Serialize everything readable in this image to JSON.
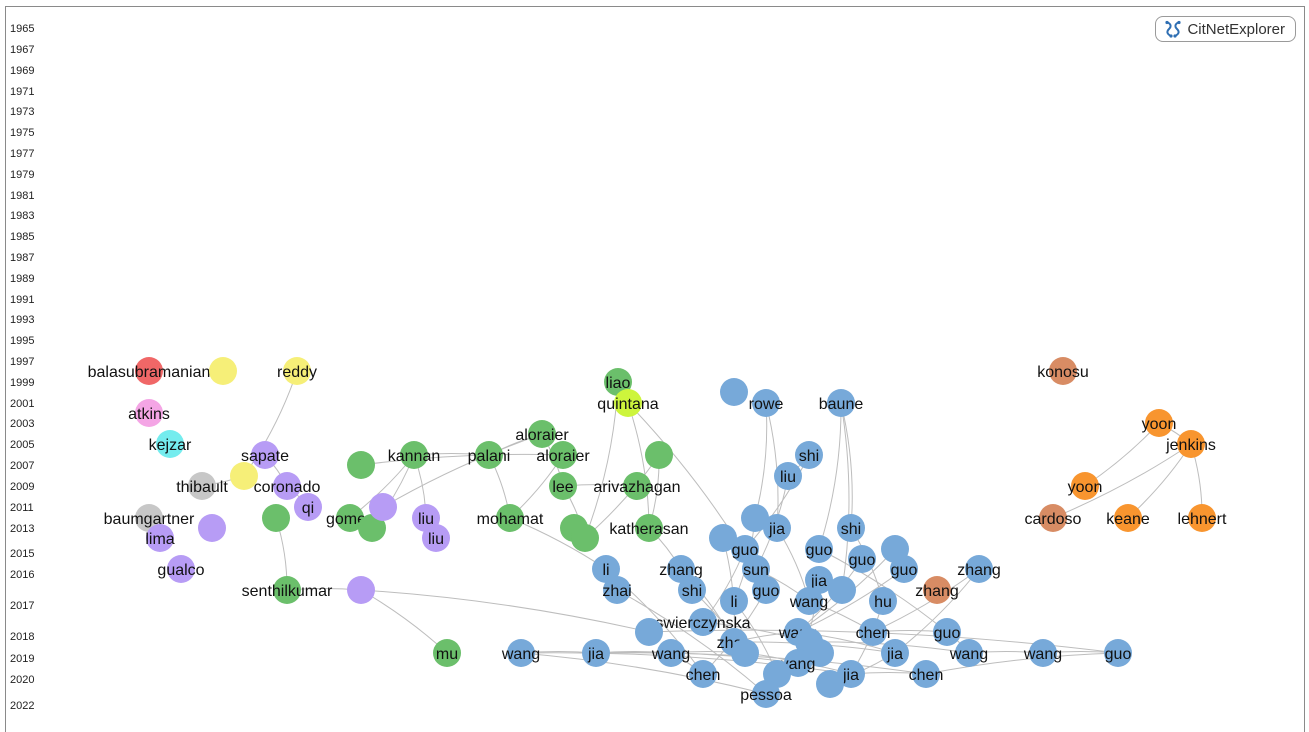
{
  "app": {
    "name": "CitNetExplorer",
    "logo_icon": "citnetexplorer-logo-icon"
  },
  "colors": {
    "green": "#6bbf6b",
    "blue": "#77a9d9",
    "purple": "#b79cf5",
    "yellow": "#f6ef78",
    "red": "#f06767",
    "pink": "#f4a5e5",
    "cyan": "#74ecee",
    "gray": "#c7c7c7",
    "lime": "#cdf53c",
    "brown": "#d88c64",
    "orange": "#f8952f",
    "edge": "#bdbdbd"
  },
  "year_axis": [
    "1965",
    "1967",
    "1969",
    "1971",
    "1973",
    "1975",
    "1977",
    "1979",
    "1981",
    "1983",
    "1985",
    "1987",
    "1989",
    "1991",
    "1993",
    "1995",
    "1997",
    "1999",
    "2001",
    "2003",
    "2005",
    "2007",
    "2009",
    "2011",
    "2013",
    "2015",
    "2016",
    "2017",
    "2018",
    "2019",
    "2020",
    "2022"
  ],
  "nodes": [
    {
      "id": "balasubramanian",
      "label": "balasubramanian",
      "year": "1998",
      "color": "red"
    },
    {
      "id": "balasubramanian-y",
      "label": "",
      "year": "1998",
      "color": "yellow"
    },
    {
      "id": "reddy",
      "label": "reddy",
      "year": "1998",
      "color": "yellow"
    },
    {
      "id": "atkins",
      "label": "atkins",
      "year": "2002",
      "color": "pink"
    },
    {
      "id": "kejzar",
      "label": "kejzar",
      "year": "2005",
      "color": "cyan"
    },
    {
      "id": "sapate",
      "label": "sapate",
      "year": "2006",
      "color": "purple"
    },
    {
      "id": "coronado-y",
      "label": "",
      "year": "2008",
      "color": "yellow"
    },
    {
      "id": "thibault",
      "label": "thibault",
      "year": "2009",
      "color": "gray"
    },
    {
      "id": "coronado",
      "label": "coronado",
      "year": "2009",
      "color": "purple"
    },
    {
      "id": "qi",
      "label": "qi",
      "year": "2010",
      "color": "purple"
    },
    {
      "id": "baumgartner",
      "label": "baumgartner",
      "year": "2012",
      "color": "gray"
    },
    {
      "id": "purple-2012",
      "label": "",
      "year": "2012",
      "color": "purple"
    },
    {
      "id": "lima",
      "label": "lima",
      "year": "2014",
      "color": "purple"
    },
    {
      "id": "gualco",
      "label": "gualco",
      "year": "2016",
      "color": "purple"
    },
    {
      "id": "green-2012a",
      "label": "",
      "year": "2012",
      "color": "green"
    },
    {
      "id": "gomes",
      "label": "gomes",
      "year": "2012",
      "color": "green"
    },
    {
      "id": "green-2013",
      "label": "",
      "year": "2013",
      "color": "green"
    },
    {
      "id": "green-2007",
      "label": "",
      "year": "2007",
      "color": "green"
    },
    {
      "id": "purple-2010",
      "label": "",
      "year": "2010",
      "color": "purple"
    },
    {
      "id": "liu-a",
      "label": "liu",
      "year": "2012",
      "color": "purple"
    },
    {
      "id": "liu-b",
      "label": "liu",
      "year": "2014",
      "color": "purple"
    },
    {
      "id": "kannan",
      "label": "kannan",
      "year": "2006",
      "color": "green"
    },
    {
      "id": "palani",
      "label": "palani",
      "year": "2006",
      "color": "green"
    },
    {
      "id": "aloraier-a",
      "label": "aloraier",
      "year": "2005",
      "color": "green"
    },
    {
      "id": "aloraier-b",
      "label": "aloraier",
      "year": "2006",
      "color": "green"
    },
    {
      "id": "mohamat",
      "label": "mohamat",
      "year": "2012",
      "color": "green"
    },
    {
      "id": "lee",
      "label": "lee",
      "year": "2009",
      "color": "green"
    },
    {
      "id": "arivazhagan",
      "label": "arivazhagan",
      "year": "2009",
      "color": "green"
    },
    {
      "id": "green-2006",
      "label": "",
      "year": "2006",
      "color": "green"
    },
    {
      "id": "katherasan",
      "label": "katherasan",
      "year": "2013",
      "color": "green"
    },
    {
      "id": "green-2013b",
      "label": "",
      "year": "2013",
      "color": "green"
    },
    {
      "id": "green-2014",
      "label": "",
      "year": "2014",
      "color": "green"
    },
    {
      "id": "liao",
      "label": "liao",
      "year": "1999",
      "color": "green"
    },
    {
      "id": "quintana",
      "label": "quintana",
      "year": "2001",
      "color": "lime"
    },
    {
      "id": "senthilkumar",
      "label": "senthilkumar",
      "year": "2016",
      "color": "green"
    },
    {
      "id": "purple-2016",
      "label": "",
      "year": "2016",
      "color": "purple"
    },
    {
      "id": "mu",
      "label": "mu",
      "year": "2019",
      "color": "green"
    },
    {
      "id": "blue-2000",
      "label": "",
      "year": "2000",
      "color": "blue"
    },
    {
      "id": "rowe",
      "label": "rowe",
      "year": "2001",
      "color": "blue"
    },
    {
      "id": "baune",
      "label": "baune",
      "year": "2001",
      "color": "blue"
    },
    {
      "id": "shi-a",
      "label": "shi",
      "year": "2006",
      "color": "blue"
    },
    {
      "id": "liu-c",
      "label": "liu",
      "year": "2008",
      "color": "blue"
    },
    {
      "id": "blue-2012",
      "label": "",
      "year": "2012",
      "color": "blue"
    },
    {
      "id": "jia-a",
      "label": "jia",
      "year": "2013",
      "color": "blue"
    },
    {
      "id": "shi-b",
      "label": "shi",
      "year": "2013",
      "color": "blue"
    },
    {
      "id": "blue-2014",
      "label": "",
      "year": "2014",
      "color": "blue"
    },
    {
      "id": "guo-a",
      "label": "guo",
      "year": "2015",
      "color": "blue"
    },
    {
      "id": "guo-b",
      "label": "guo",
      "year": "2015",
      "color": "blue"
    },
    {
      "id": "guo-c",
      "label": "guo",
      "year": "2015",
      "color": "blue"
    },
    {
      "id": "blue-2015",
      "label": "",
      "year": "2015",
      "color": "blue"
    },
    {
      "id": "li-a",
      "label": "li",
      "year": "2016",
      "color": "blue"
    },
    {
      "id": "zhang-a",
      "label": "zhang",
      "year": "2016",
      "color": "blue"
    },
    {
      "id": "sun",
      "label": "sun",
      "year": "2016",
      "color": "blue"
    },
    {
      "id": "guo-d",
      "label": "guo",
      "year": "2016",
      "color": "blue"
    },
    {
      "id": "zhang-b",
      "label": "zhang",
      "year": "2016",
      "color": "blue"
    },
    {
      "id": "jia-b",
      "label": "jia",
      "year": "2016",
      "color": "blue"
    },
    {
      "id": "zhai",
      "label": "zhai",
      "year": "2016",
      "color": "blue"
    },
    {
      "id": "shi-c",
      "label": "shi",
      "year": "2016",
      "color": "blue"
    },
    {
      "id": "guo-e",
      "label": "guo",
      "year": "2016",
      "color": "blue"
    },
    {
      "id": "li-b",
      "label": "li",
      "year": "2017",
      "color": "blue"
    },
    {
      "id": "wang-a",
      "label": "wang",
      "year": "2017",
      "color": "blue"
    },
    {
      "id": "hu",
      "label": "hu",
      "year": "2017",
      "color": "blue"
    },
    {
      "id": "zhang-c",
      "label": "zhang",
      "year": "2016",
      "color": "brown"
    },
    {
      "id": "swierczynska",
      "label": "swierczynska",
      "year": "2017",
      "color": "blue"
    },
    {
      "id": "blue-2017",
      "label": "",
      "year": "2017",
      "color": "blue"
    },
    {
      "id": "blue-2018",
      "label": "",
      "year": "2018",
      "color": "blue"
    },
    {
      "id": "zhao",
      "label": "zhao",
      "year": "2018",
      "color": "blue"
    },
    {
      "id": "wang-b",
      "label": "wang",
      "year": "2018",
      "color": "blue"
    },
    {
      "id": "chen-a",
      "label": "chen",
      "year": "2018",
      "color": "blue"
    },
    {
      "id": "guo-f",
      "label": "guo",
      "year": "2018",
      "color": "blue"
    },
    {
      "id": "blue-2018b",
      "label": "",
      "year": "2018",
      "color": "blue"
    },
    {
      "id": "wang-c",
      "label": "wang",
      "year": "2019",
      "color": "blue"
    },
    {
      "id": "jia-c",
      "label": "jia",
      "year": "2019",
      "color": "blue"
    },
    {
      "id": "wang-d",
      "label": "wang",
      "year": "2019",
      "color": "blue"
    },
    {
      "id": "blue-2019",
      "label": "",
      "year": "2019",
      "color": "blue"
    },
    {
      "id": "blue-2019b",
      "label": "",
      "year": "2019",
      "color": "blue"
    },
    {
      "id": "jia-d",
      "label": "jia",
      "year": "2019",
      "color": "blue"
    },
    {
      "id": "wang-e",
      "label": "wang",
      "year": "2019",
      "color": "blue"
    },
    {
      "id": "wang-f",
      "label": "wang",
      "year": "2019",
      "color": "blue"
    },
    {
      "id": "guo-g",
      "label": "guo",
      "year": "2019",
      "color": "blue"
    },
    {
      "id": "yang",
      "label": "yang",
      "year": "2019",
      "color": "blue"
    },
    {
      "id": "chen-b",
      "label": "chen",
      "year": "2020",
      "color": "blue"
    },
    {
      "id": "blue-2020",
      "label": "",
      "year": "2020",
      "color": "blue"
    },
    {
      "id": "jia-e",
      "label": "jia",
      "year": "2020",
      "color": "blue"
    },
    {
      "id": "chen-c",
      "label": "chen",
      "year": "2020",
      "color": "blue"
    },
    {
      "id": "blue-2020b",
      "label": "",
      "year": "2020",
      "color": "blue"
    },
    {
      "id": "pessoa",
      "label": "pessoa",
      "year": "2022",
      "color": "blue"
    },
    {
      "id": "konosu",
      "label": "konosu",
      "year": "1998",
      "color": "brown"
    },
    {
      "id": "yoon-a",
      "label": "yoon",
      "year": "2003",
      "color": "orange"
    },
    {
      "id": "jenkins",
      "label": "jenkins",
      "year": "2005",
      "color": "orange"
    },
    {
      "id": "yoon-b",
      "label": "yoon",
      "year": "2009",
      "color": "orange"
    },
    {
      "id": "cardoso",
      "label": "cardoso",
      "year": "2012",
      "color": "brown"
    },
    {
      "id": "keane",
      "label": "keane",
      "year": "2012",
      "color": "orange"
    },
    {
      "id": "lehnert",
      "label": "lehnert",
      "year": "2012",
      "color": "orange"
    }
  ]
}
